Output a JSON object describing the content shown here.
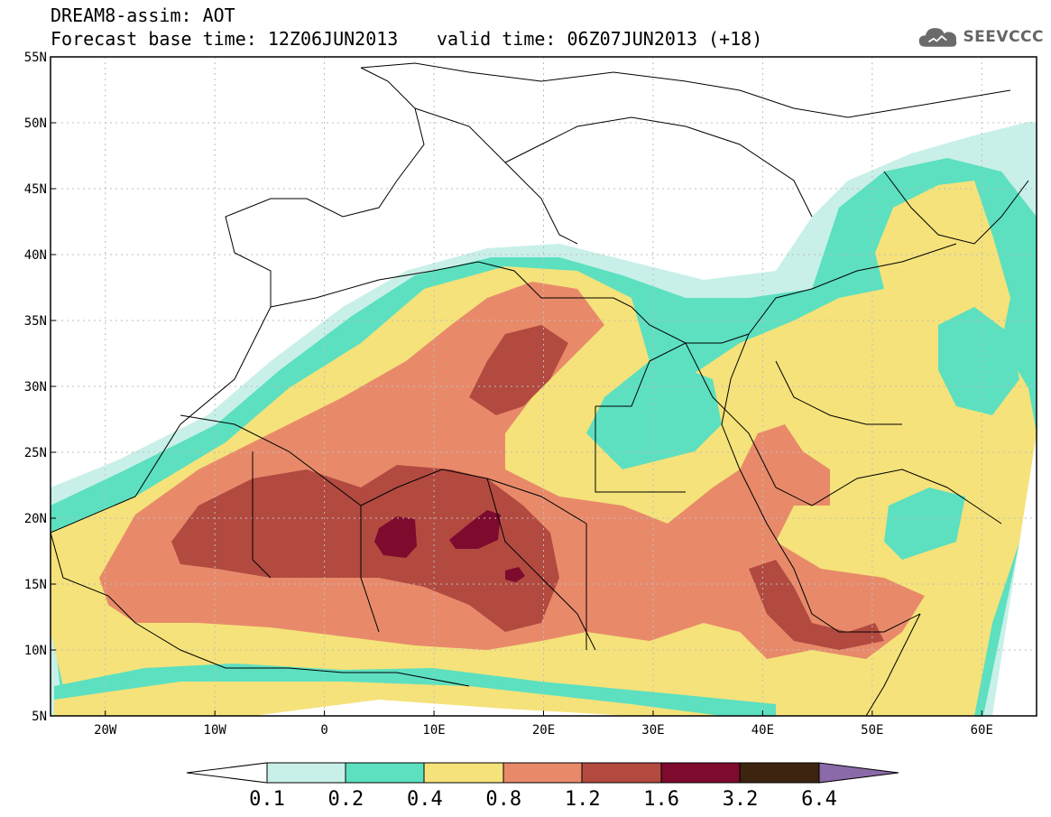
{
  "header": {
    "title_line1": "DREAM8-assim: AOT",
    "base_time_text": "Forecast base time: 12Z06JUN2013",
    "valid_time_text": "valid time: 06Z07JUN2013 (+18)"
  },
  "logo": {
    "text": "SEEVCCC",
    "icon": "cloud-icon"
  },
  "map": {
    "lat_ticks": [
      "55N",
      "50N",
      "45N",
      "40N",
      "35N",
      "30N",
      "25N",
      "20N",
      "15N",
      "10N",
      "5N"
    ],
    "lon_ticks": [
      "20W",
      "10W",
      "0",
      "10E",
      "20E",
      "30E",
      "40E",
      "50E",
      "60E"
    ],
    "lat_range": [
      5,
      55
    ],
    "lon_range": [
      -25,
      65
    ],
    "grid": true
  },
  "colorbar": {
    "labels": [
      "0.1",
      "0.2",
      "0.4",
      "0.8",
      "1.2",
      "1.6",
      "3.2",
      "6.4"
    ],
    "colors": {
      "under": "#ffffff",
      "c1": "#c8f0e8",
      "c2": "#5ce0c0",
      "c3": "#f5e27a",
      "c4": "#e88a6a",
      "c5": "#b24a40",
      "c6": "#7e0a2e",
      "c7": "#3c2410",
      "over": "#8a6aa8"
    }
  }
}
